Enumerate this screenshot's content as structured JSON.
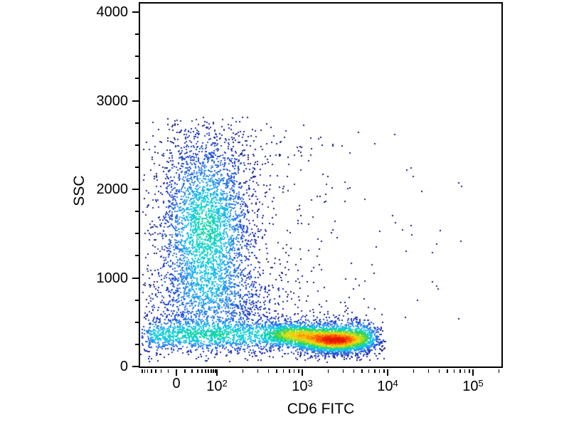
{
  "chart_data": {
    "type": "scatter",
    "subtype": "flow-cytometry-density-dot-plot",
    "title": "",
    "xlabel": "CD6 FITC",
    "ylabel": "SSC",
    "x_scale": "logicle-biexponential",
    "y_scale": "linear",
    "y_range": [
      0,
      4100
    ],
    "x_range_approx": [
      -80,
      230000
    ],
    "grid": false,
    "legend": "none (density colormap)",
    "background": "#ffffff",
    "axis_color": "#000000",
    "y_ticks": {
      "major": [
        0,
        1000,
        2000,
        3000,
        4000
      ],
      "major_labels": [
        "0",
        "1000",
        "2000",
        "3000",
        "4000"
      ],
      "minor": [
        250,
        500,
        750,
        1250,
        1500,
        1750,
        2250,
        2500,
        2750,
        3250,
        3500,
        3750
      ]
    },
    "x_ticks": {
      "major": [
        {
          "value": 0,
          "text": "0"
        },
        {
          "value": 100,
          "base": "10",
          "exp": "2"
        },
        {
          "value": 1000,
          "base": "10",
          "exp": "3"
        },
        {
          "value": 10000,
          "base": "10",
          "exp": "4"
        },
        {
          "value": 100000,
          "base": "10",
          "exp": "5"
        }
      ],
      "minor": [
        -70,
        -60,
        -50,
        -40,
        -30,
        -20,
        -10,
        10,
        20,
        30,
        40,
        50,
        60,
        70,
        80,
        90,
        200,
        300,
        400,
        500,
        600,
        700,
        800,
        900,
        2000,
        3000,
        4000,
        5000,
        6000,
        7000,
        8000,
        9000,
        20000,
        30000,
        40000,
        50000,
        60000,
        70000,
        80000,
        90000,
        200000
      ]
    },
    "colormap": {
      "name": "density-jet",
      "stops": [
        [
          0.0,
          "#16166f"
        ],
        [
          0.1,
          "#1e2fb5"
        ],
        [
          0.2,
          "#2356dd"
        ],
        [
          0.3,
          "#2e8df0"
        ],
        [
          0.4,
          "#18c4ee"
        ],
        [
          0.5,
          "#0cd8c0"
        ],
        [
          0.58,
          "#2fd24f"
        ],
        [
          0.66,
          "#8edc28"
        ],
        [
          0.74,
          "#e8e619"
        ],
        [
          0.82,
          "#ffae00"
        ],
        [
          0.9,
          "#ff5500"
        ],
        [
          1.0,
          "#e31400"
        ]
      ]
    },
    "populations": [
      {
        "name": "cd6-negative-high-ssc-cluster",
        "desc": "CD6− cells, SSC ~700–2700, FITC ~0–10^2, cyan-density core",
        "gen": {
          "kind": "gauss",
          "n": 3000,
          "cx": 93,
          "cy": 317,
          "sx": 36,
          "sy": 72,
          "xmin": 3,
          "xmax": 215,
          "ymin": 160,
          "ymax": 448
        },
        "w": 0.5
      },
      {
        "name": "cluster-to-band-bridge",
        "desc": "smear joining cluster to low-SSC band",
        "gen": {
          "kind": "gauss",
          "n": 650,
          "cx": 105,
          "cy": 415,
          "sx": 55,
          "sy": 26,
          "xmin": 3,
          "xmax": 250,
          "ymin": 355,
          "ymax": 470
        },
        "w": 0.15
      },
      {
        "name": "low-ssc-band",
        "desc": "SSC ~200–500 band from FITC 0 to ~10^4",
        "gen": {
          "kind": "band",
          "n": 2600,
          "x0": -4,
          "x1": 346,
          "cy": 466,
          "sy": 13,
          "ymin": 424,
          "ymax": 504
        },
        "w": 0.42
      },
      {
        "name": "cd6-positive-hotspot",
        "desc": "bright CD6+ population, FITC ~2×10^3–5×10^3, red density maximum",
        "gen": {
          "kind": "gauss",
          "n": 2400,
          "cx": 275,
          "cy": 475,
          "sx": 30,
          "sy": 9.5,
          "xmin": 215,
          "xmax": 345,
          "ymin": 442,
          "ymax": 502
        },
        "w": 0.66
      },
      {
        "name": "pre-hotspot-green-ridge",
        "desc": "secondary density ridge ~10^3",
        "gen": {
          "kind": "gauss",
          "n": 700,
          "cx": 218,
          "cy": 465,
          "sx": 22,
          "sy": 8,
          "xmin": 170,
          "xmax": 270,
          "ymin": 442,
          "ymax": 495
        },
        "w": 0.3
      },
      {
        "name": "sparse-debris",
        "desc": "scattered low-density events across mid plot",
        "gen": {
          "kind": "bg",
          "n": 540,
          "xbase": 40,
          "xspread": 125,
          "xmax": 502,
          "ymin": 170,
          "ymax": 458
        },
        "w": 0.0
      },
      {
        "name": "rare-outliers",
        "desc": "isolated events toward high FITC / high SSC",
        "gen": {
          "kind": "uniform",
          "n": 60,
          "x0": 5,
          "x1": 460,
          "y0": 168,
          "y1": 455
        },
        "w": 0.0
      }
    ]
  }
}
